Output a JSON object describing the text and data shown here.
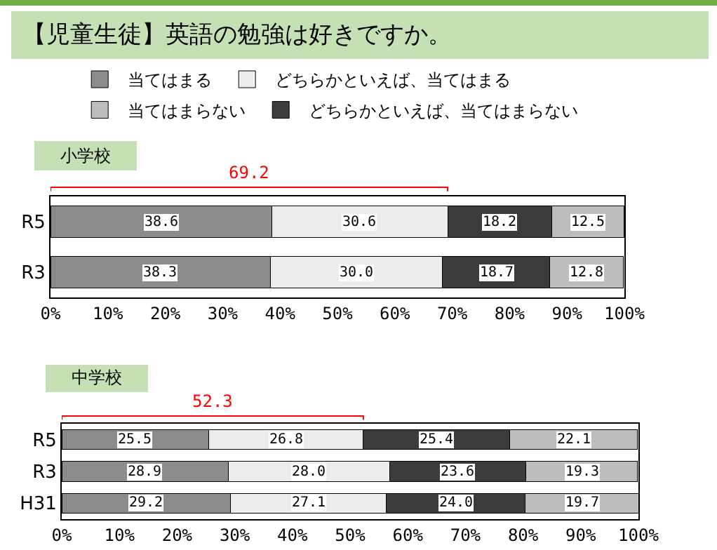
{
  "chart_data": [
    {
      "type": "bar",
      "orientation": "horizontal",
      "stacked": true,
      "title": "【児童生徒】英語の勉強は好きですか。",
      "subtitle": "小学校",
      "categories": [
        "R5",
        "R3"
      ],
      "series": [
        {
          "name": "当てはまる",
          "color": "#8c8c8c",
          "values": [
            38.6,
            38.3
          ],
          "value_labels": [
            "38.6",
            "38.3"
          ]
        },
        {
          "name": "どちらかといえば、当てはまる",
          "color": "#ececec",
          "values": [
            30.6,
            30.0
          ],
          "value_labels": [
            "30.6",
            "30.0"
          ]
        },
        {
          "name": "どちらかといえば、当てはまらない",
          "color": "#3c3c3c",
          "values": [
            18.2,
            18.7
          ],
          "value_labels": [
            "18.2",
            "18.7"
          ]
        },
        {
          "name": "当てはまらない",
          "color": "#bdbdbd",
          "values": [
            12.5,
            12.8
          ],
          "value_labels": [
            "12.5",
            "12.8"
          ]
        }
      ],
      "xlim": [
        0,
        100
      ],
      "xticks": [
        {
          "value": 0,
          "label": "0%"
        },
        {
          "value": 10,
          "label": "10%"
        },
        {
          "value": 20,
          "label": "20%"
        },
        {
          "value": 30,
          "label": "30%"
        },
        {
          "value": 40,
          "label": "40%"
        },
        {
          "value": 50,
          "label": "50%"
        },
        {
          "value": 60,
          "label": "60%"
        },
        {
          "value": 70,
          "label": "70%"
        },
        {
          "value": 80,
          "label": "80%"
        },
        {
          "value": 90,
          "label": "90%"
        },
        {
          "value": 100,
          "label": "100%"
        }
      ],
      "annotations": [
        "69.2"
      ],
      "legend": "top",
      "grid": false
    },
    {
      "type": "bar",
      "orientation": "horizontal",
      "stacked": true,
      "title": "中学校",
      "categories": [
        "R5",
        "R3",
        "H31"
      ],
      "series": [
        {
          "color": "#8c8c8c",
          "values": [
            25.5,
            28.9,
            29.2
          ],
          "value_labels": [
            "25.5",
            "28.9",
            "29.2"
          ]
        },
        {
          "color": "#ececec",
          "values": [
            26.8,
            28.0,
            27.1
          ],
          "value_labels": [
            "26.8",
            "28.0",
            "27.1"
          ]
        },
        {
          "color": "#3c3c3c",
          "values": [
            25.4,
            23.6,
            24.0
          ],
          "value_labels": [
            "25.4",
            "23.6",
            "24.0"
          ]
        },
        {
          "color": "#bdbdbd",
          "values": [
            22.1,
            19.3,
            19.7
          ],
          "value_labels": [
            "22.1",
            "19.3",
            "19.7"
          ]
        }
      ],
      "xlim": [
        0,
        100
      ],
      "xticks": [
        {
          "value": 0,
          "label": "0%"
        },
        {
          "value": 10,
          "label": "10%"
        },
        {
          "value": 20,
          "label": "20%"
        },
        {
          "value": 30,
          "label": "30%"
        },
        {
          "value": 40,
          "label": "40%"
        },
        {
          "value": 50,
          "label": "50%"
        },
        {
          "value": 60,
          "label": "60%"
        },
        {
          "value": 70,
          "label": "70%"
        },
        {
          "value": 80,
          "label": "80%"
        },
        {
          "value": 90,
          "label": "90%"
        },
        {
          "value": 100,
          "label": "100%"
        }
      ],
      "annotations": [
        "52.3"
      ],
      "legend": false,
      "grid": false
    }
  ]
}
